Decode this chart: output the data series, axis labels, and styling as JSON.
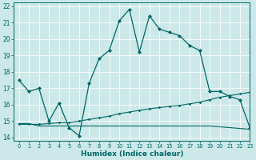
{
  "xlabel": "Humidex (Indice chaleur)",
  "xlim": [
    -0.5,
    23
  ],
  "ylim": [
    13.8,
    22.2
  ],
  "yticks": [
    14,
    15,
    16,
    17,
    18,
    19,
    20,
    21,
    22
  ],
  "xticks": [
    0,
    1,
    2,
    3,
    4,
    5,
    6,
    7,
    8,
    9,
    10,
    11,
    12,
    13,
    14,
    15,
    16,
    17,
    18,
    19,
    20,
    21,
    22,
    23
  ],
  "bg_color": "#cce8e8",
  "line_color": "#006666",
  "grid_color": "#b0d4d4",
  "line1_x": [
    0,
    1,
    2,
    3,
    4,
    5,
    6,
    7,
    8,
    9,
    10,
    11,
    12,
    13,
    14,
    15,
    16,
    17,
    18,
    19,
    20,
    21,
    22,
    23
  ],
  "line1_y": [
    17.5,
    16.8,
    17.0,
    15.0,
    16.1,
    14.6,
    14.1,
    17.3,
    18.8,
    19.3,
    21.1,
    21.8,
    19.2,
    21.4,
    20.6,
    20.4,
    20.2,
    19.6,
    19.3,
    16.8,
    16.8,
    16.5,
    16.3,
    14.6
  ],
  "line2_x": [
    0,
    1,
    2,
    3,
    4,
    5,
    6,
    7,
    8,
    9,
    10,
    11,
    12,
    13,
    14,
    15,
    16,
    17,
    18,
    19,
    20,
    21,
    22,
    23
  ],
  "line2_y": [
    14.8,
    14.8,
    14.8,
    14.85,
    14.9,
    14.9,
    15.0,
    15.1,
    15.2,
    15.3,
    15.45,
    15.55,
    15.65,
    15.75,
    15.82,
    15.9,
    15.95,
    16.05,
    16.15,
    16.3,
    16.45,
    16.55,
    16.65,
    16.75
  ],
  "line3_x": [
    0,
    1,
    2,
    3,
    4,
    5,
    6,
    7,
    8,
    9,
    10,
    11,
    12,
    13,
    14,
    15,
    16,
    17,
    18,
    19,
    20,
    21,
    22,
    23
  ],
  "line3_y": [
    14.85,
    14.85,
    14.7,
    14.7,
    14.7,
    14.7,
    14.7,
    14.7,
    14.7,
    14.7,
    14.7,
    14.7,
    14.7,
    14.7,
    14.7,
    14.7,
    14.7,
    14.7,
    14.7,
    14.7,
    14.65,
    14.6,
    14.55,
    14.5
  ]
}
